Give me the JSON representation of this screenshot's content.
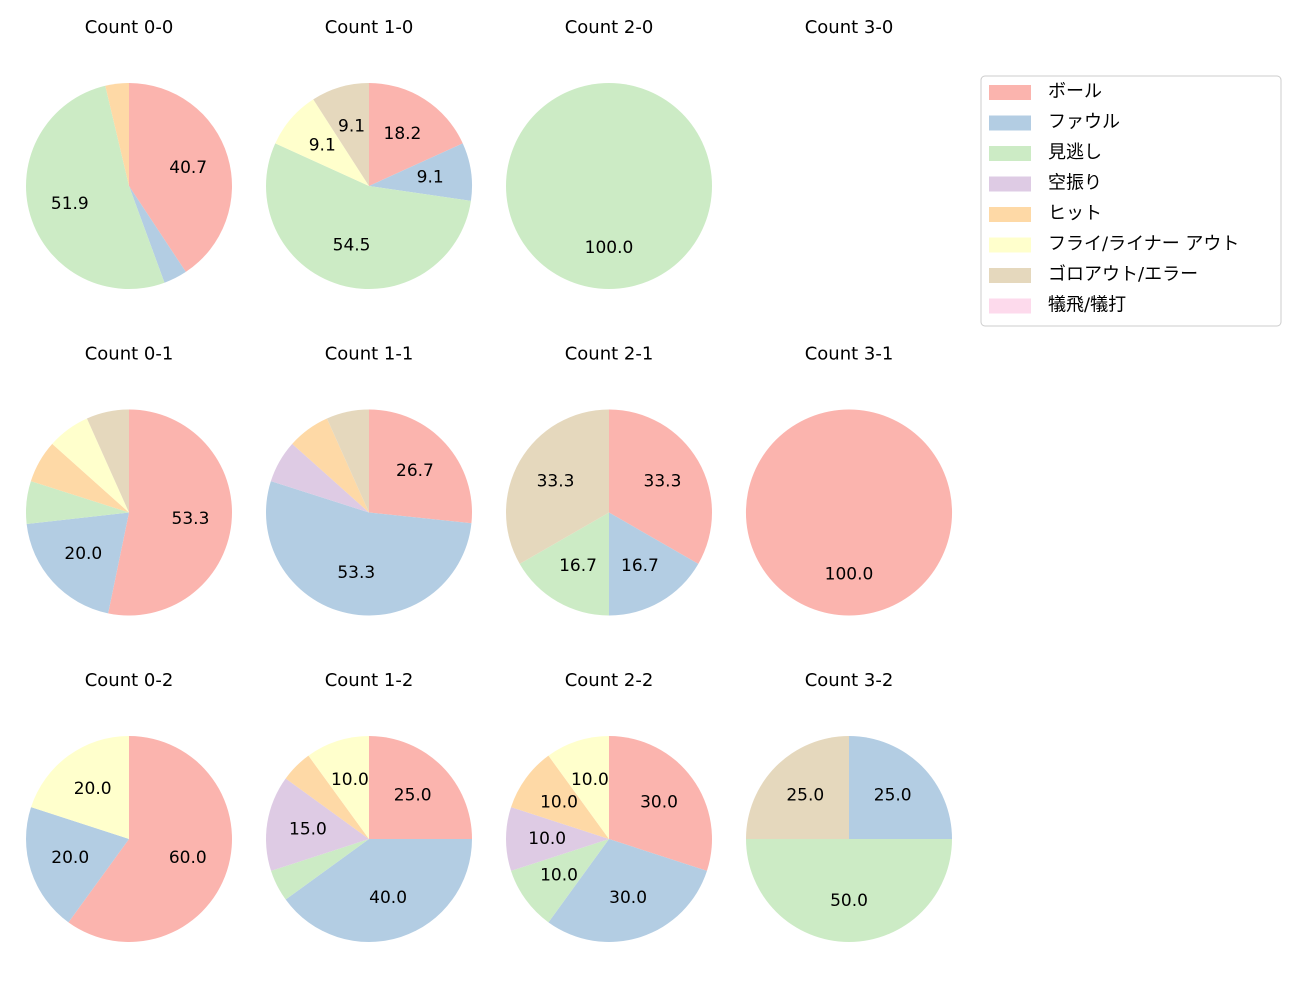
{
  "legend": {
    "categories": [
      "ボール",
      "ファウル",
      "見逃し",
      "空振り",
      "ヒット",
      "フライ/ライナー アウト",
      "ゴロアウト/エラー",
      "犠飛/犠打"
    ],
    "colors": [
      "#fbb4ae",
      "#b3cde3",
      "#ccebc5",
      "#decbe4",
      "#fed9a6",
      "#ffffcc",
      "#e5d8bd",
      "#fddaec"
    ]
  },
  "chart_data": [
    {
      "type": "pie",
      "title": "Count 0-0",
      "values": [
        40.7,
        3.7,
        51.9,
        0,
        3.7,
        0,
        0,
        0
      ],
      "value_labels": [
        "40.7",
        null,
        "51.9",
        null,
        null,
        null,
        null,
        null
      ]
    },
    {
      "type": "pie",
      "title": "Count 1-0",
      "values": [
        18.2,
        9.1,
        54.5,
        0,
        0,
        9.1,
        9.1,
        0
      ],
      "value_labels": [
        "18.2",
        "9.1",
        "54.5",
        null,
        null,
        "9.1",
        "9.1",
        null
      ]
    },
    {
      "type": "pie",
      "title": "Count 2-0",
      "values": [
        0,
        0,
        100,
        0,
        0,
        0,
        0,
        0
      ],
      "value_labels": [
        null,
        null,
        "100.0",
        null,
        null,
        null,
        null,
        null
      ]
    },
    {
      "type": "pie",
      "title": "Count 3-0"
    },
    {
      "type": "pie",
      "title": "Count 0-1",
      "values": [
        53.3,
        20,
        6.7,
        0,
        6.7,
        6.7,
        6.7,
        0
      ],
      "value_labels": [
        "53.3",
        "20.0",
        null,
        null,
        null,
        null,
        null,
        null
      ]
    },
    {
      "type": "pie",
      "title": "Count 1-1",
      "values": [
        26.7,
        53.3,
        0,
        6.7,
        6.7,
        0,
        6.7,
        0
      ],
      "value_labels": [
        "26.7",
        "53.3",
        null,
        null,
        null,
        null,
        null,
        null
      ]
    },
    {
      "type": "pie",
      "title": "Count 2-1",
      "values": [
        33.3,
        16.7,
        16.7,
        0,
        0,
        0,
        33.3,
        0
      ],
      "value_labels": [
        "33.3",
        "16.7",
        "16.7",
        null,
        null,
        null,
        "33.3",
        null
      ]
    },
    {
      "type": "pie",
      "title": "Count 3-1",
      "values": [
        100,
        0,
        0,
        0,
        0,
        0,
        0,
        0
      ],
      "value_labels": [
        "100.0",
        null,
        null,
        null,
        null,
        null,
        null,
        null
      ]
    },
    {
      "type": "pie",
      "title": "Count 0-2",
      "values": [
        60,
        20,
        0,
        0,
        0,
        20,
        0,
        0
      ],
      "value_labels": [
        "60.0",
        "20.0",
        null,
        null,
        null,
        "20.0",
        null,
        null
      ]
    },
    {
      "type": "pie",
      "title": "Count 1-2",
      "values": [
        25,
        40,
        5,
        15,
        5,
        10,
        0,
        0
      ],
      "value_labels": [
        "25.0",
        "40.0",
        null,
        "15.0",
        null,
        "10.0",
        null,
        null
      ]
    },
    {
      "type": "pie",
      "title": "Count 2-2",
      "values": [
        30,
        30,
        10,
        10,
        10,
        10,
        0,
        0
      ],
      "value_labels": [
        "30.0",
        "30.0",
        "10.0",
        "10.0",
        "10.0",
        "10.0",
        null,
        null
      ]
    },
    {
      "type": "pie",
      "title": "Count 3-2",
      "values": [
        0,
        25,
        50,
        0,
        0,
        0,
        25,
        0
      ],
      "value_labels": [
        null,
        "25.0",
        "50.0",
        null,
        null,
        null,
        "25.0",
        null
      ]
    }
  ]
}
